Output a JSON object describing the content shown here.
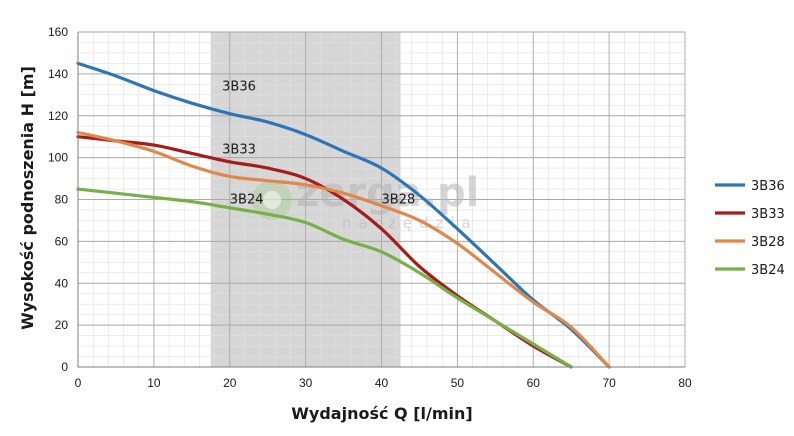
{
  "chart_data": {
    "type": "line",
    "xlabel": "Wydajność Q [l/min]",
    "ylabel": "Wysokość podnoszenia H [m]",
    "xlim": [
      0,
      80
    ],
    "ylim": [
      0,
      160
    ],
    "xticks": [
      "0",
      "10",
      "20",
      "30",
      "40",
      "50",
      "60",
      "70",
      "80"
    ],
    "yticks": [
      "0",
      "20",
      "40",
      "60",
      "80",
      "100",
      "120",
      "140",
      "160"
    ],
    "grid": true,
    "minor_grid": true,
    "legend_position": "right",
    "shaded_region": {
      "x_from": 17.5,
      "x_to": 42.5,
      "color": "#d6d6d6"
    },
    "watermark": {
      "text": "zerga.pl",
      "subtext": "narzędzia"
    },
    "series": [
      {
        "name": "3B36",
        "color": "#2e75b6",
        "x": [
          0,
          5,
          10,
          15,
          20,
          25,
          30,
          35,
          40,
          45,
          50,
          55,
          60,
          65,
          70
        ],
        "y": [
          145,
          139,
          132,
          126,
          121,
          117,
          111,
          103,
          95,
          82,
          66,
          49,
          32,
          18,
          0
        ]
      },
      {
        "name": "3B33",
        "color": "#a61b1b",
        "x": [
          0,
          5,
          10,
          15,
          20,
          25,
          30,
          35,
          40,
          45,
          50,
          55,
          60,
          65
        ],
        "y": [
          110,
          108,
          106,
          102,
          98,
          95,
          90,
          80,
          66,
          48,
          34,
          22,
          10,
          0
        ]
      },
      {
        "name": "3B28",
        "color": "#e0884a",
        "x": [
          0,
          5,
          10,
          15,
          20,
          25,
          30,
          35,
          40,
          45,
          50,
          55,
          60,
          65,
          70
        ],
        "y": [
          112,
          108,
          103,
          96,
          91,
          89,
          87,
          83,
          77,
          70,
          59,
          45,
          31,
          19,
          0
        ]
      },
      {
        "name": "3B24",
        "color": "#76b046",
        "x": [
          0,
          5,
          10,
          15,
          20,
          25,
          30,
          35,
          40,
          45,
          50,
          55,
          60,
          65
        ],
        "y": [
          85,
          83,
          81,
          79,
          76,
          73,
          69,
          61,
          55,
          45,
          33,
          22,
          11,
          0
        ]
      }
    ],
    "curve_labels": [
      {
        "text": "3B36",
        "x": 19,
        "y": 132
      },
      {
        "text": "3B33",
        "x": 19,
        "y": 102
      },
      {
        "text": "3B24",
        "x": 20,
        "y": 78
      },
      {
        "text": "3B28",
        "x": 40,
        "y": 78
      }
    ]
  }
}
